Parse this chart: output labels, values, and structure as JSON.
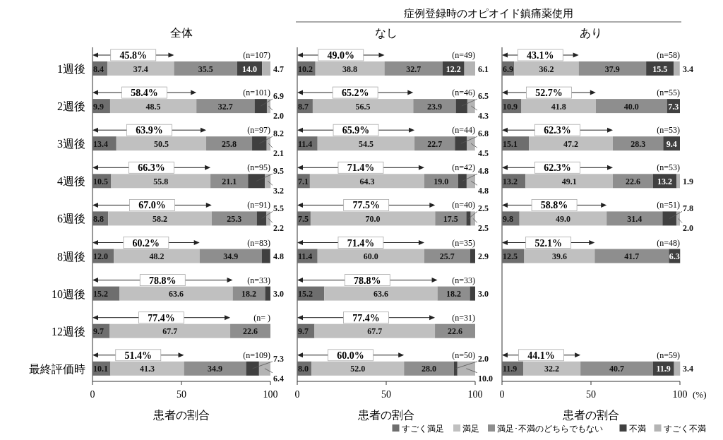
{
  "chart_data": [
    {
      "type": "bar",
      "orientation": "horizontal",
      "stacked": true,
      "title": "全体",
      "xlabel": "患者の割合",
      "xlim": [
        0,
        100
      ],
      "xticks": [
        0,
        50,
        100
      ],
      "categories": [
        "1週後",
        "2週後",
        "3週後",
        "4週後",
        "6週後",
        "8週後",
        "10週後",
        "12週後",
        "最終評価時"
      ],
      "series": [
        {
          "color": "#6e6e6e",
          "values": [
            8.4,
            9.9,
            13.4,
            10.5,
            8.8,
            12.0,
            15.2,
            9.7,
            10.1
          ],
          "value_labels": [
            "8.4",
            "9.9",
            "13.4",
            "10.5",
            "8.8",
            "12.0",
            "15.2",
            "9.7",
            "10.1"
          ]
        },
        {
          "color": "#c0c0c0",
          "values": [
            37.4,
            48.5,
            50.5,
            55.8,
            58.2,
            48.2,
            63.6,
            67.7,
            41.3
          ],
          "value_labels": [
            "37.4",
            "48.5",
            "50.5",
            "55.8",
            "58.2",
            "48.2",
            "63.6",
            "67.7",
            "41.3"
          ]
        },
        {
          "color": "#8e8e8e",
          "values": [
            35.5,
            32.7,
            25.8,
            21.1,
            25.3,
            34.9,
            18.2,
            22.6,
            34.9
          ],
          "value_labels": [
            "35.5",
            "32.7",
            "25.8",
            "21.1",
            "25.3",
            "34.9",
            "18.2",
            "22.6",
            "34.9"
          ]
        },
        {
          "color": "#404040",
          "values": [
            14.0,
            6.9,
            8.2,
            9.5,
            5.5,
            4.8,
            3.0,
            null,
            7.3
          ],
          "value_labels": [
            "14.0",
            "6.9",
            "8.2",
            "9.5",
            "5.5",
            "4.8",
            "3.0",
            null,
            "7.3"
          ]
        },
        {
          "color": "#b4b4b4",
          "values": [
            4.7,
            2.0,
            2.1,
            3.2,
            2.2,
            null,
            null,
            null,
            6.4
          ],
          "value_labels": [
            "4.7",
            "2.0",
            "2.1",
            "3.2",
            "2.2",
            null,
            null,
            null,
            "6.4"
          ]
        }
      ],
      "annotations": [
        "45.8%",
        "58.4%",
        "63.9%",
        "66.3%",
        "67.0%",
        "60.2%",
        "78.8%",
        "77.4%",
        "51.4%",
        "(n=107)",
        "(n=101)",
        "(n=97)",
        "(n=95)",
        "(n=91)",
        "(n=83)",
        "(n=33)",
        "(n= )",
        "(n=109)"
      ]
    },
    {
      "type": "bar",
      "orientation": "horizontal",
      "stacked": true,
      "title": "なし",
      "xlabel": "患者の割合",
      "xlim": [
        0,
        100
      ],
      "xticks": [
        0,
        50,
        100
      ],
      "tick_labels": "x",
      "categories": [
        null,
        null,
        null,
        null,
        null,
        null,
        null,
        null,
        null
      ],
      "series": [
        {
          "color": "#6e6e6e",
          "values": [
            10.2,
            8.7,
            11.4,
            7.1,
            7.5,
            11.4,
            15.2,
            9.7,
            8.0
          ],
          "value_labels": [
            "10.2",
            "8.7",
            "11.4",
            "7.1",
            "7.5",
            "11.4",
            "15.2",
            "9.7",
            "8.0"
          ]
        },
        {
          "color": "#c0c0c0",
          "values": [
            38.8,
            56.5,
            54.5,
            64.3,
            70.0,
            60.0,
            63.6,
            67.7,
            52.0
          ],
          "value_labels": [
            "38.8",
            "56.5",
            "54.5",
            "64.3",
            "70.0",
            "60.0",
            "63.6",
            "67.7",
            "52.0"
          ]
        },
        {
          "color": "#8e8e8e",
          "values": [
            32.7,
            23.9,
            22.7,
            19.0,
            17.5,
            25.7,
            18.2,
            22.6,
            28.0
          ],
          "value_labels": [
            "32.7",
            "23.9",
            "22.7",
            "19.0",
            "17.5",
            "25.7",
            "18.2",
            "22.6",
            "28.0"
          ]
        },
        {
          "color": "#404040",
          "values": [
            12.2,
            6.5,
            6.8,
            4.8,
            2.5,
            2.9,
            3.0,
            null,
            2.0
          ],
          "value_labels": [
            "12.2",
            "6.5",
            "6.8",
            "4.8",
            "2.5",
            "2.9",
            "3.0",
            null,
            "2.0"
          ]
        },
        {
          "color": "#b4b4b4",
          "values": [
            6.1,
            4.3,
            4.5,
            4.8,
            2.5,
            null,
            null,
            null,
            10.0
          ],
          "value_labels": [
            "6.1",
            "4.3",
            "4.5",
            "4.8",
            "2.5",
            null,
            null,
            null,
            "10.0"
          ]
        }
      ],
      "annotations": [
        "症例登録時のオピオイド鎮痛薬使用",
        "49.0%",
        "65.2%",
        "65.9%",
        "71.4%",
        "77.5%",
        "71.4%",
        "78.8%",
        "77.4%",
        "60.0%",
        "(n=49)",
        "(n=46)",
        "(n=44)",
        "(n=42)",
        "(n=40)",
        "(n=35)",
        "(n=33)",
        "(n=31)",
        "(n=50)"
      ]
    },
    {
      "type": "bar",
      "orientation": "horizontal",
      "stacked": true,
      "title": "あり",
      "xlabel": "患者の割合",
      "xlim": [
        0,
        100
      ],
      "xticks": [
        0,
        50,
        100
      ],
      "tick_labels": "x",
      "legend": "bottom",
      "categories": [
        null,
        null,
        null,
        null,
        null,
        null,
        null,
        null,
        null
      ],
      "series": [
        {
          "name": "すごく満足",
          "color": "#6e6e6e",
          "values": [
            6.9,
            10.9,
            15.1,
            13.2,
            9.8,
            12.5,
            null,
            null,
            11.9
          ],
          "value_labels": [
            "6.9",
            "10.9",
            "15.1",
            "13.2",
            "9.8",
            "12.5",
            null,
            null,
            "11.9"
          ]
        },
        {
          "name": "満足",
          "color": "#c0c0c0",
          "values": [
            36.2,
            41.8,
            47.2,
            49.1,
            49.0,
            39.6,
            null,
            null,
            32.2
          ],
          "value_labels": [
            "36.2",
            "41.8",
            "47.2",
            "49.1",
            "49.0",
            "39.6",
            null,
            null,
            "32.2"
          ]
        },
        {
          "name": "満足･不満のどちらでもない",
          "color": "#8e8e8e",
          "values": [
            37.9,
            40.0,
            28.3,
            22.6,
            31.4,
            41.7,
            null,
            null,
            40.7
          ],
          "value_labels": [
            "37.9",
            "40.0",
            "28.3",
            "22.6",
            "31.4",
            "41.7",
            null,
            null,
            "40.7"
          ]
        },
        {
          "name": "不満",
          "color": "#404040",
          "values": [
            15.5,
            7.3,
            9.4,
            13.2,
            7.8,
            6.3,
            null,
            null,
            11.9
          ],
          "value_labels": [
            "15.5",
            "7.3",
            "9.4",
            "13.2",
            "7.8",
            "6.3",
            null,
            null,
            "11.9"
          ]
        },
        {
          "name": "すごく不満",
          "color": "#b4b4b4",
          "values": [
            3.4,
            null,
            null,
            1.9,
            2.0,
            null,
            null,
            null,
            3.4
          ],
          "value_labels": [
            "3.4",
            null,
            null,
            "1.9",
            "2.0",
            null,
            null,
            null,
            "3.4"
          ]
        }
      ],
      "annotations": [
        "(%)",
        "43.1%",
        "52.7%",
        "62.3%",
        "62.3%",
        "58.8%",
        "52.1%",
        "44.1%",
        "(n=58)",
        "(n=55)",
        "(n=53)",
        "(n=53)",
        "(n=51)",
        "(n=48)",
        "(n=59)"
      ]
    }
  ]
}
